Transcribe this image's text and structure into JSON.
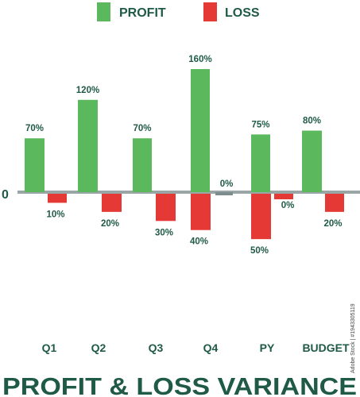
{
  "chart_data": {
    "type": "bar",
    "title": "PROFIT & LOSS VARIANCE",
    "categories": [
      "Q1",
      "Q2",
      "Q3",
      "Q4",
      "PY",
      "BUDGET"
    ],
    "series": [
      {
        "name": "PROFIT",
        "values": [
          70,
          120,
          70,
          160,
          75,
          80
        ],
        "labels": [
          "70%",
          "120%",
          "70%",
          "160%",
          "75%",
          "80%"
        ],
        "color": "#5cb85c"
      },
      {
        "name": "LOSS",
        "values": [
          -10,
          -20,
          -30,
          -40,
          -50,
          -20
        ],
        "labels": [
          "10%",
          "20%",
          "30%",
          "40%",
          "50%",
          "20%"
        ],
        "color": "#e53935"
      }
    ],
    "q4_gap_label": "0%",
    "py_loss_label_position": "PY",
    "zero_label": "0",
    "axis_color": "#9aa5a5",
    "text_color": "#1f5a47",
    "side_text": "Adobe Stock | #1943305119"
  }
}
